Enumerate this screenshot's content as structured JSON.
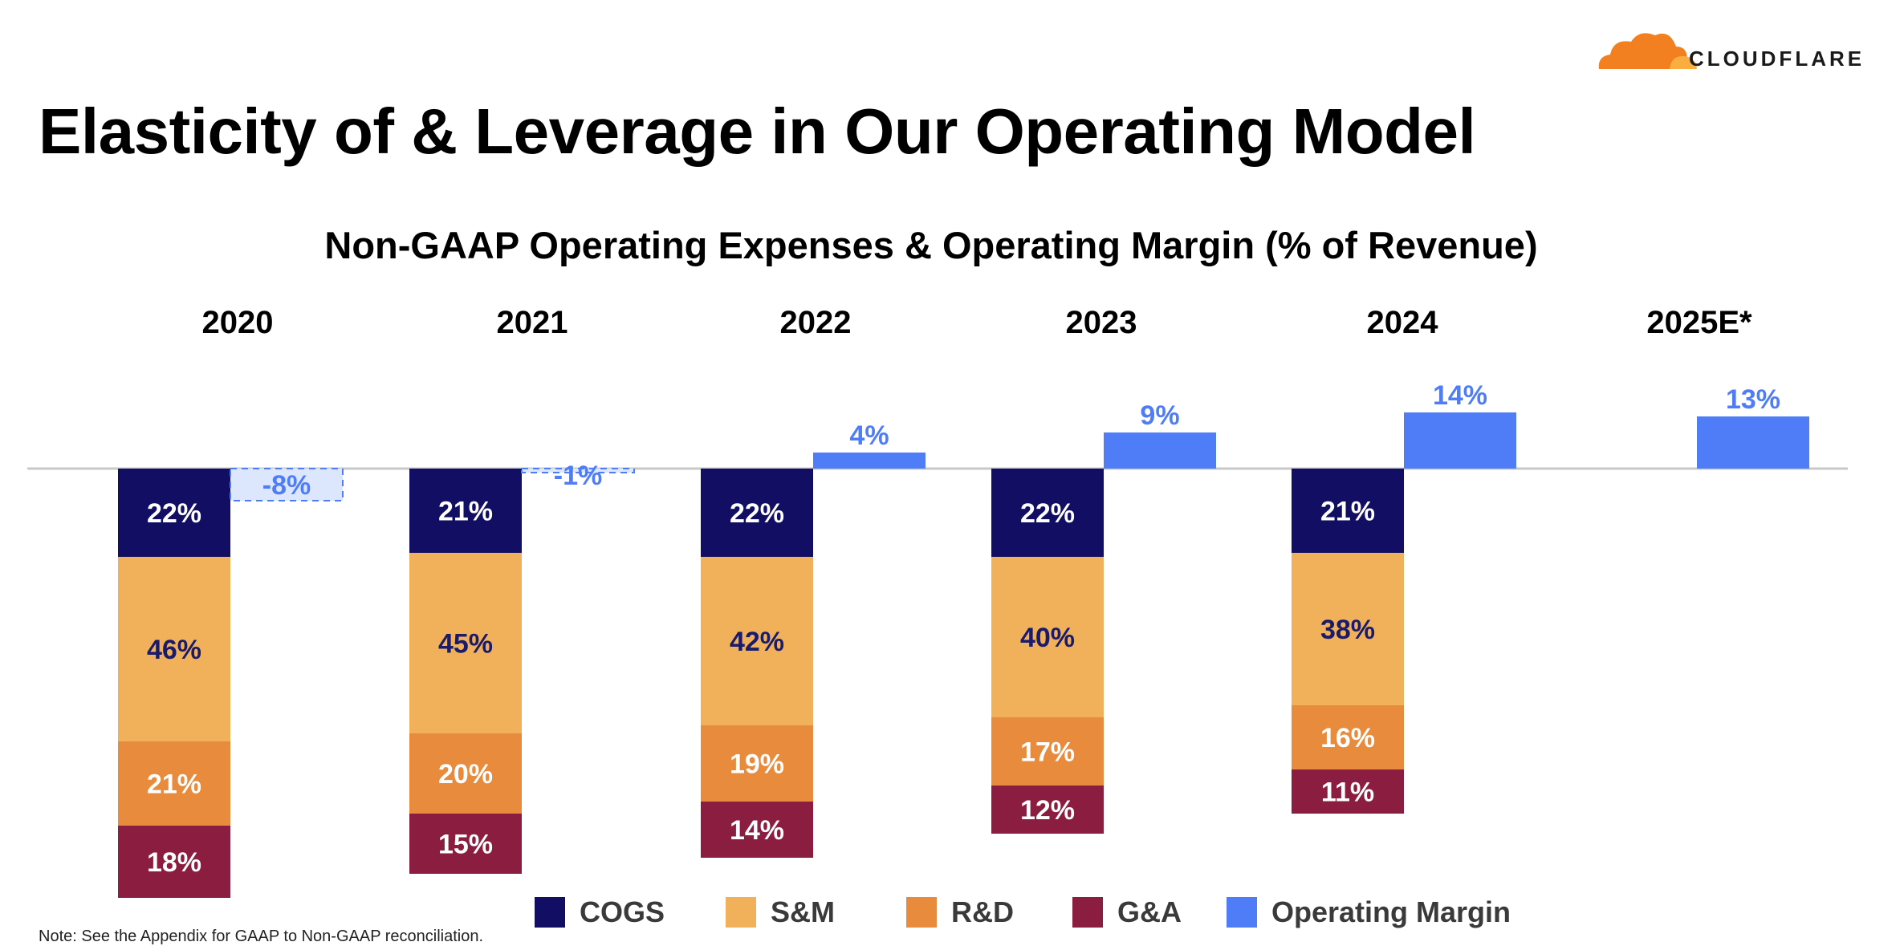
{
  "slide": {
    "title": "Elasticity of & Leverage in Our Operating Model",
    "note": "Note: See the Appendix for GAAP to Non-GAAP reconciliation."
  },
  "logo": {
    "name": "cloudflare-logo",
    "text": "CLOUDFLARE",
    "cloud_color": "#F38020"
  },
  "chart_data": {
    "type": "bar",
    "title": "Non-GAAP Operating Expenses & Operating Margin (% of Revenue)",
    "categories": [
      "2020",
      "2021",
      "2022",
      "2023",
      "2024",
      "2025E*"
    ],
    "unit": "%",
    "stacked_expenses": [
      {
        "name": "COGS",
        "color": "#120E63",
        "label_color": "#FFFFFF",
        "values": [
          22,
          21,
          22,
          22,
          21,
          null
        ]
      },
      {
        "name": "S&M",
        "color": "#F0B15A",
        "label_color": "#1B1B6B",
        "values": [
          46,
          45,
          42,
          40,
          38,
          null
        ]
      },
      {
        "name": "R&D",
        "color": "#E98B3C",
        "label_color": "#FFFFFF",
        "values": [
          21,
          20,
          19,
          17,
          16,
          null
        ]
      },
      {
        "name": "G&A",
        "color": "#8B1E40",
        "label_color": "#FFFFFF",
        "values": [
          18,
          15,
          14,
          12,
          11,
          null
        ]
      }
    ],
    "operating_margin": {
      "name": "Operating Margin",
      "color": "#4F7CF7",
      "negative_fill": "#DCE6FD",
      "values": [
        -8,
        -1,
        4,
        9,
        14,
        13
      ]
    },
    "baseline": 0,
    "grid": false,
    "legend": {
      "position": "bottom",
      "items": [
        "COGS",
        "S&M",
        "R&D",
        "G&A",
        "Operating Margin"
      ]
    }
  }
}
